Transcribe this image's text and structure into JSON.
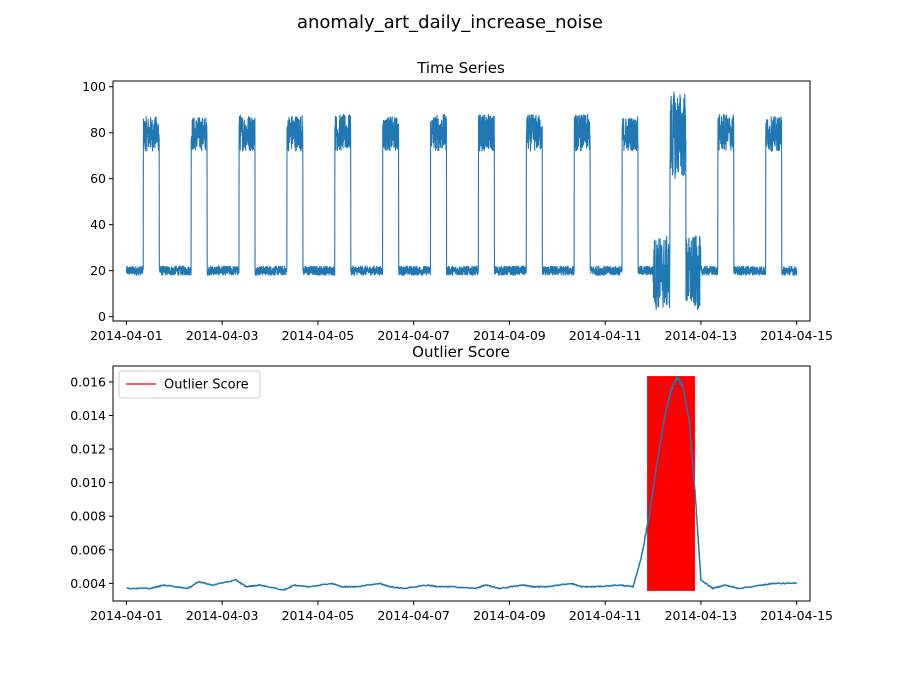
{
  "figure": {
    "suptitle": "anomaly_art_daily_increase_noise"
  },
  "chart_data": [
    {
      "type": "line",
      "title": "Time Series",
      "xlabel": "",
      "ylabel": "",
      "x_ticks": [
        "2014-04-01",
        "2014-04-03",
        "2014-04-05",
        "2014-04-07",
        "2014-04-09",
        "2014-04-11",
        "2014-04-13",
        "2014-04-15"
      ],
      "xlim": [
        "2014-03-31T17:17",
        "2014-04-15T06:40"
      ],
      "ylim": [
        -1.9,
        102.5
      ],
      "y_ticks": [
        0,
        20,
        40,
        60,
        80,
        100
      ],
      "grid": false,
      "color": "#1f77b4",
      "series": [
        {
          "x_start": "2014-04-01T00:00",
          "x_end": "2014-04-15T00:00",
          "pattern": "daily",
          "days": [
            "2014-04-01",
            "2014-04-02",
            "2014-04-03",
            "2014-04-04",
            "2014-04-05",
            "2014-04-06",
            "2014-04-07",
            "2014-04-08",
            "2014-04-09",
            "2014-04-10",
            "2014-04-11",
            "2014-04-12",
            "2014-04-13",
            "2014-04-14"
          ],
          "low_min": [
            18,
            18,
            18,
            18,
            18,
            18,
            18,
            18,
            18,
            18,
            18,
            3,
            18,
            18
          ],
          "low_max": [
            22,
            22,
            22,
            22,
            22,
            22,
            22,
            22,
            22,
            22,
            22,
            35,
            22,
            22
          ],
          "high_min": [
            72,
            72,
            72,
            72,
            72,
            72,
            72,
            72,
            72,
            72,
            72,
            60,
            72,
            72
          ],
          "high_max": [
            87,
            87,
            88,
            88,
            88,
            87,
            88,
            88,
            88,
            88,
            87,
            98,
            88,
            87
          ],
          "rise_hours": 8.5,
          "fall_hours": 16.5
        }
      ]
    },
    {
      "type": "line",
      "title": "Outlier Score",
      "xlabel": "",
      "ylabel": "",
      "x_ticks": [
        "2014-04-01",
        "2014-04-03",
        "2014-04-05",
        "2014-04-07",
        "2014-04-09",
        "2014-04-11",
        "2014-04-13",
        "2014-04-15"
      ],
      "xlim": [
        "2014-03-31T17:17",
        "2014-04-15T06:40"
      ],
      "ylim": [
        0.00295,
        0.01695
      ],
      "y_ticks": [
        0.004,
        0.006,
        0.008,
        0.01,
        0.012,
        0.014,
        0.016
      ],
      "y_tick_labels": [
        "0.004",
        "0.006",
        "0.008",
        "0.010",
        "0.012",
        "0.014",
        "0.016"
      ],
      "grid": false,
      "legend": {
        "position": "top-left",
        "entries": [
          {
            "label": "Outlier Score",
            "color": "#ff0000"
          }
        ]
      },
      "highlight": {
        "x_start": "2014-04-11T21:00",
        "x_end": "2014-04-12T21:00",
        "y_min": 0.00355,
        "y_max": 0.01635,
        "color": "#ff0000"
      },
      "series": [
        {
          "color": "#1f77b4",
          "x": [
            "2014-04-01T00:00",
            "2014-04-01T12:00",
            "2014-04-01T19:00",
            "2014-04-02T07:00",
            "2014-04-02T12:00",
            "2014-04-02T19:00",
            "2014-04-03T07:00",
            "2014-04-03T12:00",
            "2014-04-03T19:00",
            "2014-04-04T07:00",
            "2014-04-04T12:00",
            "2014-04-04T19:00",
            "2014-04-05T07:00",
            "2014-04-05T12:00",
            "2014-04-05T19:00",
            "2014-04-06T07:00",
            "2014-04-06T12:00",
            "2014-04-06T19:00",
            "2014-04-07T07:00",
            "2014-04-07T12:00",
            "2014-04-07T19:00",
            "2014-04-08T07:00",
            "2014-04-08T12:00",
            "2014-04-08T19:00",
            "2014-04-09T07:00",
            "2014-04-09T12:00",
            "2014-04-09T19:00",
            "2014-04-10T07:00",
            "2014-04-10T12:00",
            "2014-04-10T19:00",
            "2014-04-11T07:00",
            "2014-04-11T14:00",
            "2014-04-11T18:00",
            "2014-04-11T22:00",
            "2014-04-12T02:00",
            "2014-04-12T06:00",
            "2014-04-12T09:00",
            "2014-04-12T12:00",
            "2014-04-12T15:00",
            "2014-04-12T18:00",
            "2014-04-12T21:00",
            "2014-04-13T00:00",
            "2014-04-13T06:00",
            "2014-04-13T12:00",
            "2014-04-13T19:00",
            "2014-04-14T07:00",
            "2014-04-14T12:00",
            "2014-04-15T00:00"
          ],
          "y": [
            0.0037,
            0.0037,
            0.0039,
            0.0037,
            0.0041,
            0.0039,
            0.0042,
            0.0038,
            0.0039,
            0.0036,
            0.0039,
            0.0038,
            0.004,
            0.0038,
            0.0038,
            0.004,
            0.0038,
            0.0037,
            0.0039,
            0.0038,
            0.0038,
            0.0037,
            0.0039,
            0.0037,
            0.0039,
            0.0038,
            0.0038,
            0.004,
            0.0038,
            0.0038,
            0.0039,
            0.0038,
            0.0055,
            0.008,
            0.0112,
            0.014,
            0.0155,
            0.0163,
            0.0157,
            0.0138,
            0.0095,
            0.0042,
            0.0037,
            0.0039,
            0.0037,
            0.0039,
            0.004,
            0.004
          ]
        }
      ]
    }
  ]
}
